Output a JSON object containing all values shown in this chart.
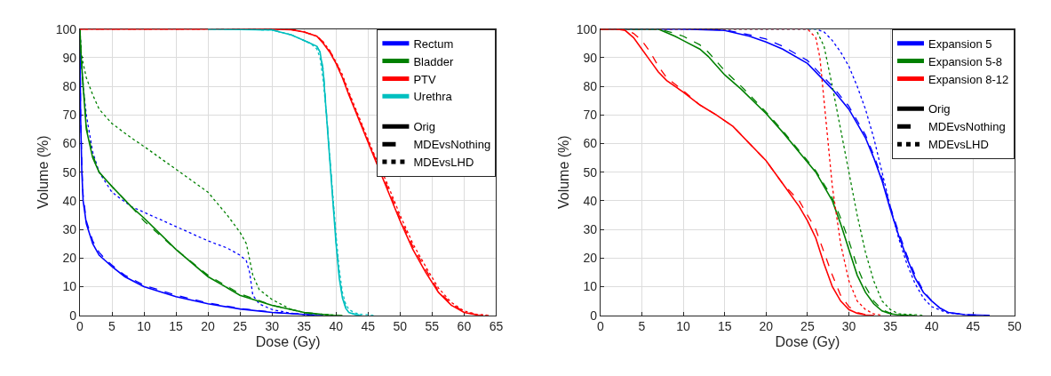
{
  "chart_data": [
    {
      "type": "line",
      "xlabel": "Dose (Gy)",
      "ylabel": "Volume (%)",
      "xlim": [
        0,
        65
      ],
      "ylim": [
        0,
        100
      ],
      "xticks": [
        0,
        5,
        10,
        15,
        20,
        25,
        30,
        35,
        40,
        45,
        50,
        55,
        60,
        65
      ],
      "yticks": [
        0,
        10,
        20,
        30,
        40,
        50,
        60,
        70,
        80,
        90,
        100
      ],
      "grid": true,
      "legend": "top right",
      "marker": "none",
      "series": [
        {
          "name": "Rectum",
          "color": "#0000ff",
          "line_style": "solid",
          "x": [
            0,
            0.1,
            0.3,
            0.5,
            1,
            2,
            3,
            4,
            5,
            7,
            10,
            15,
            20,
            25,
            30,
            35,
            38
          ],
          "values": [
            100,
            70,
            50,
            40,
            32,
            25,
            21,
            19,
            17,
            13.5,
            10,
            6.5,
            4,
            2.2,
            1,
            0.3,
            0
          ]
        },
        {
          "color": "#0000ff",
          "line_style": "dashed",
          "x": [
            0,
            0.1,
            0.3,
            0.5,
            1,
            2,
            3,
            4,
            5,
            7,
            10,
            15,
            20,
            25,
            30,
            35,
            37
          ],
          "values": [
            100,
            72,
            52,
            42,
            33,
            26,
            22,
            19.5,
            17.5,
            14,
            10.5,
            7,
            4.3,
            2.4,
            1.1,
            0.3,
            0
          ]
        },
        {
          "color": "#0000ff",
          "line_style": "dotted",
          "x": [
            0,
            0.2,
            0.5,
            1,
            2,
            3,
            5,
            8,
            10,
            15,
            20,
            23,
            25,
            26,
            26.5,
            27,
            28,
            30,
            33,
            36
          ],
          "values": [
            100,
            90,
            80,
            70,
            57,
            50,
            43,
            38,
            36,
            31,
            26,
            23.5,
            21,
            19,
            15,
            7,
            4,
            2,
            0.7,
            0
          ]
        },
        {
          "name": "Bladder",
          "color": "#008000",
          "line_style": "solid",
          "x": [
            0,
            0.2,
            0.5,
            1,
            2,
            3,
            5,
            8,
            10,
            15,
            20,
            25,
            30,
            35,
            38,
            40
          ],
          "values": [
            100,
            90,
            80,
            65,
            55,
            50,
            45,
            38,
            34,
            23,
            13.5,
            7,
            3.5,
            1,
            0.3,
            0
          ]
        },
        {
          "color": "#008000",
          "line_style": "dashed",
          "x": [
            0,
            0.2,
            0.5,
            1,
            2,
            3,
            5,
            8,
            10,
            15,
            20,
            25,
            30,
            35,
            38,
            41
          ],
          "values": [
            100,
            91,
            81,
            66,
            56,
            50,
            45,
            38,
            33,
            23,
            14,
            7.5,
            3.5,
            1,
            0.3,
            0
          ]
        },
        {
          "color": "#008000",
          "line_style": "dotted",
          "x": [
            0,
            0.2,
            0.5,
            1,
            2,
            3,
            5,
            8,
            10,
            15,
            20,
            23,
            25,
            26,
            27,
            28,
            30,
            33,
            36,
            40
          ],
          "values": [
            100,
            92,
            88,
            83,
            77,
            72,
            67,
            62,
            59,
            51,
            43,
            35,
            29,
            25,
            14,
            9,
            5.5,
            2,
            0.5,
            0
          ]
        },
        {
          "name": "PTV",
          "color": "#ff0000",
          "line_style": "solid",
          "x": [
            0,
            30,
            33,
            35,
            37,
            38,
            39,
            40,
            41,
            42,
            44,
            46,
            48,
            50,
            52,
            54,
            56,
            58,
            60,
            62,
            63
          ],
          "values": [
            100,
            100,
            99.8,
            99,
            97.5,
            95,
            92,
            88,
            83,
            77,
            66,
            55,
            44,
            33,
            23,
            15,
            8,
            3.5,
            1,
            0.1,
            0
          ]
        },
        {
          "color": "#ff0000",
          "line_style": "dashed",
          "x": [
            0,
            30,
            33,
            35,
            37,
            38,
            39,
            40,
            41,
            42,
            44,
            46,
            48,
            50,
            52,
            54,
            56,
            58,
            60,
            62,
            63.5
          ],
          "values": [
            100,
            100,
            99.8,
            99,
            97.5,
            95.5,
            92.5,
            88.5,
            83.5,
            77.5,
            66.5,
            55.5,
            45,
            34,
            24,
            16,
            8.5,
            4,
            1.2,
            0.2,
            0
          ]
        },
        {
          "color": "#ff0000",
          "line_style": "dotted",
          "x": [
            0,
            30,
            33,
            35,
            37,
            38,
            39,
            40,
            41,
            42,
            44,
            46,
            48,
            50,
            52,
            54,
            56,
            58,
            60,
            62,
            64
          ],
          "values": [
            100,
            100,
            99.8,
            99,
            97.5,
            95.5,
            92.5,
            88.5,
            84,
            78,
            67,
            56,
            46,
            35,
            25,
            17,
            9.5,
            4.5,
            1.5,
            0.3,
            0
          ]
        },
        {
          "name": "Urethra",
          "color": "#00bfbf",
          "line_style": "solid",
          "x": [
            20,
            30,
            33,
            35,
            36,
            37,
            37.5,
            38,
            38.5,
            39,
            39.5,
            40,
            40.5,
            41,
            41.5,
            42,
            43,
            44
          ],
          "values": [
            100,
            99.7,
            98,
            96,
            95,
            94,
            92,
            85,
            70,
            55,
            40,
            25,
            13,
            6,
            2.5,
            1,
            0.2,
            0
          ]
        },
        {
          "color": "#00bfbf",
          "line_style": "dashed",
          "x": [
            20,
            30,
            33,
            35,
            36,
            37,
            37.5,
            38,
            38.5,
            39,
            39.5,
            40,
            40.5,
            41,
            41.5,
            42,
            43,
            44
          ],
          "values": [
            100,
            99.7,
            98,
            96,
            95,
            94,
            92,
            86,
            71,
            56,
            41,
            26,
            14,
            6.5,
            3,
            1.2,
            0.3,
            0
          ]
        },
        {
          "color": "#00bfbf",
          "line_style": "dotted",
          "x": [
            20,
            30,
            33,
            35,
            36,
            37,
            37.5,
            38,
            38.5,
            39,
            39.5,
            40,
            40.5,
            41,
            41.5,
            42,
            43,
            44,
            46
          ],
          "values": [
            100,
            99.7,
            98,
            96,
            95,
            93,
            90,
            82,
            70,
            56,
            42,
            28,
            16,
            8,
            4,
            2,
            0.8,
            0.3,
            0
          ]
        },
        {
          "name": "Orig",
          "color": "#000000",
          "line_style": "solid"
        },
        {
          "name": "MDEvsNothing",
          "color": "#000000",
          "line_style": "dashed"
        },
        {
          "name": "MDEvsLHD",
          "color": "#000000",
          "line_style": "dotted"
        }
      ]
    },
    {
      "type": "line",
      "xlabel": "Dose (Gy)",
      "ylabel": "Volume (%)",
      "xlim": [
        0,
        50
      ],
      "ylim": [
        0,
        100
      ],
      "xticks": [
        0,
        5,
        10,
        15,
        20,
        25,
        30,
        35,
        40,
        45,
        50
      ],
      "yticks": [
        0,
        10,
        20,
        30,
        40,
        50,
        60,
        70,
        80,
        90,
        100
      ],
      "grid": true,
      "legend": "top right",
      "marker": "none",
      "series": [
        {
          "name": "Expansion 5",
          "color": "#0000ff",
          "line_style": "solid",
          "x": [
            0,
            10,
            15,
            18,
            20,
            22,
            25,
            27,
            28,
            30,
            32,
            33,
            34,
            35,
            36,
            37,
            38,
            39,
            40,
            41,
            42,
            44,
            47
          ],
          "values": [
            100,
            100,
            99.5,
            97.5,
            95.5,
            93,
            88,
            82,
            79,
            72,
            62,
            55,
            47,
            37,
            28,
            20,
            13,
            8,
            5,
            2.5,
            1,
            0.2,
            0
          ]
        },
        {
          "color": "#0000ff",
          "line_style": "dashed",
          "x": [
            0,
            10,
            15,
            18,
            20,
            22,
            25,
            27,
            28,
            30,
            32,
            33,
            34,
            35,
            36,
            37,
            38,
            39,
            40,
            41,
            42,
            44,
            47
          ],
          "values": [
            100,
            100,
            99.7,
            98,
            96.5,
            94,
            89,
            83,
            80,
            73,
            63,
            56,
            48,
            38,
            29,
            21,
            14,
            8.5,
            5,
            2.5,
            1,
            0.2,
            0
          ]
        },
        {
          "color": "#0000ff",
          "line_style": "dotted",
          "x": [
            0,
            26,
            27,
            28,
            29,
            30,
            31,
            32,
            33,
            34,
            35,
            36,
            37,
            38,
            39,
            40,
            42,
            45
          ],
          "values": [
            100,
            100,
            99,
            96,
            92,
            87,
            80,
            72,
            62,
            50,
            38,
            27,
            18,
            11,
            6,
            3,
            0.7,
            0
          ]
        },
        {
          "name": "Expansion 5-8",
          "color": "#008000",
          "line_style": "solid",
          "x": [
            0,
            7,
            9,
            10,
            12,
            13,
            15,
            17,
            20,
            22,
            24,
            26,
            28,
            29,
            30,
            31,
            32,
            33,
            34,
            35,
            36,
            38
          ],
          "values": [
            100,
            100,
            97.5,
            96,
            93,
            90.5,
            84,
            79,
            70.5,
            64,
            57,
            50,
            40,
            32,
            23,
            14,
            8,
            4,
            1.5,
            0.5,
            0.1,
            0
          ]
        },
        {
          "color": "#008000",
          "line_style": "dashed",
          "x": [
            0,
            7,
            9,
            10,
            12,
            13,
            15,
            17,
            20,
            22,
            24,
            26,
            28,
            29,
            30,
            31,
            32,
            33,
            34,
            35,
            36,
            38
          ],
          "values": [
            100,
            100,
            98.5,
            97.5,
            94.5,
            92,
            85.5,
            80,
            71,
            64.5,
            57.5,
            50.5,
            41,
            34,
            26,
            17,
            10,
            5,
            2,
            0.7,
            0.1,
            0
          ]
        },
        {
          "color": "#008000",
          "line_style": "dotted",
          "x": [
            0,
            26,
            27,
            28,
            29,
            30,
            31,
            32,
            33,
            34,
            35,
            36,
            39
          ],
          "values": [
            100,
            100,
            94,
            80,
            65,
            50,
            35,
            22,
            12,
            5,
            2,
            0.5,
            0
          ]
        },
        {
          "name": "Expansion 8-12",
          "color": "#ff0000",
          "line_style": "solid",
          "x": [
            0,
            2,
            3,
            4,
            5,
            6,
            7,
            8,
            10,
            12,
            14,
            16,
            18,
            20,
            22,
            24,
            25,
            26,
            27,
            28,
            29,
            30,
            31,
            32,
            33
          ],
          "values": [
            100,
            100,
            99.5,
            97,
            93,
            89,
            85,
            82,
            78,
            73.5,
            70,
            66,
            60,
            54,
            46,
            38,
            33,
            27,
            18,
            10,
            5,
            2,
            0.7,
            0.1,
            0
          ]
        },
        {
          "color": "#ff0000",
          "line_style": "dashed",
          "x": [
            0,
            2,
            3,
            4,
            5,
            6,
            7,
            8,
            10,
            12,
            14,
            16,
            18,
            20,
            22,
            24,
            25,
            26,
            27,
            28,
            29,
            30,
            31,
            32,
            33
          ],
          "values": [
            100,
            100,
            99.8,
            98.5,
            96,
            92,
            87,
            83,
            78.5,
            73.5,
            70,
            66,
            60,
            54,
            46,
            40,
            35,
            30,
            22,
            14,
            7,
            3,
            1,
            0.2,
            0
          ]
        },
        {
          "color": "#ff0000",
          "line_style": "dotted",
          "x": [
            0,
            25,
            26,
            26.5,
            27,
            27.5,
            28,
            29,
            30,
            31,
            32,
            33,
            34
          ],
          "values": [
            100,
            100,
            97,
            90,
            75,
            60,
            45,
            25,
            12,
            5,
            2,
            0.5,
            0
          ]
        },
        {
          "name": "Orig",
          "color": "#000000",
          "line_style": "solid"
        },
        {
          "name": "MDEvsNothing",
          "color": "#000000",
          "line_style": "dashed"
        },
        {
          "name": "MDEvsLHD",
          "color": "#000000",
          "line_style": "dotted"
        }
      ]
    }
  ]
}
